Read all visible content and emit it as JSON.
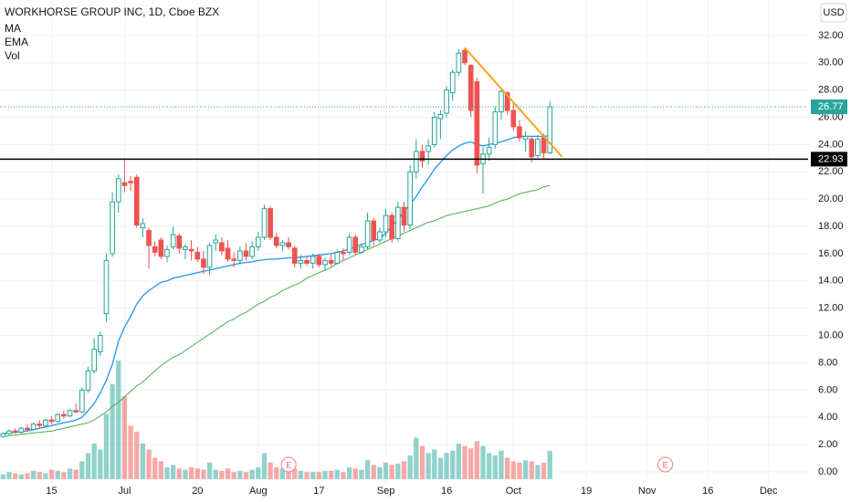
{
  "chart_data": {
    "type": "candlestick",
    "title": "WORKHORSE GROUP INC, 1D, Cboe BZX",
    "currency": "USD",
    "up_color": "#26a69a",
    "down_color": "#ef5350",
    "grid": true,
    "ylim": [
      -0.87,
      34.6
    ],
    "yticks": [
      {
        "value": 0,
        "label": "0.00"
      },
      {
        "value": 2,
        "label": "2.00"
      },
      {
        "value": 4,
        "label": "4.00"
      },
      {
        "value": 6,
        "label": "6.00"
      },
      {
        "value": 8,
        "label": "8.00"
      },
      {
        "value": 10,
        "label": "10.00"
      },
      {
        "value": 12,
        "label": "12.00"
      },
      {
        "value": 14,
        "label": "14.00"
      },
      {
        "value": 16,
        "label": "16.00"
      },
      {
        "value": 18,
        "label": "18.00"
      },
      {
        "value": 20,
        "label": "20.00"
      },
      {
        "value": 22,
        "label": "22.00"
      },
      {
        "value": 24,
        "label": "24.00"
      },
      {
        "value": 26,
        "label": "26.00"
      },
      {
        "value": 28,
        "label": "28.00"
      },
      {
        "value": 30,
        "label": "30.00"
      },
      {
        "value": 32,
        "label": "32.00"
      }
    ],
    "categories": [
      null,
      null,
      null,
      null,
      null,
      null,
      null,
      null,
      "15",
      null,
      null,
      null,
      null,
      null,
      null,
      null,
      null,
      null,
      null,
      null,
      "Jul",
      null,
      null,
      null,
      null,
      null,
      null,
      null,
      null,
      null,
      null,
      null,
      "20",
      null,
      null,
      null,
      null,
      null,
      null,
      null,
      null,
      null,
      "Aug",
      null,
      null,
      null,
      null,
      null,
      null,
      null,
      null,
      null,
      "17",
      null,
      null,
      null,
      null,
      null,
      null,
      null,
      null,
      null,
      null,
      "Sep",
      null,
      null,
      null,
      null,
      null,
      null,
      null,
      null,
      null,
      "16",
      null,
      null,
      null,
      null,
      null,
      null,
      null,
      null,
      null,
      null,
      "Oct",
      null,
      null,
      null,
      null,
      null,
      null,
      null,
      null,
      null,
      null,
      null,
      "19",
      null,
      null,
      null,
      null,
      null,
      null,
      null,
      null,
      null,
      "Nov",
      null,
      null,
      null,
      null,
      null,
      null,
      null,
      null,
      null,
      "16",
      null,
      null,
      null,
      null,
      null,
      null,
      null,
      null,
      null,
      "Dec",
      null,
      null,
      null,
      null,
      null,
      null
    ],
    "open": [
      2.6,
      2.8,
      3.0,
      2.9,
      3.2,
      3.1,
      3.5,
      3.4,
      3.8,
      3.7,
      4.2,
      4.1,
      4.5,
      4.4,
      6.0,
      7.4,
      8.8,
      11.6,
      16.0,
      19.8,
      21.2,
      21.3,
      21.6,
      17.9,
      17.7,
      16.5,
      17.0,
      15.8,
      16.5,
      17.3,
      16.3,
      16.3,
      16.1,
      15.6,
      15.0,
      16.8,
      16.8,
      16.4,
      15.6,
      15.5,
      16.2,
      15.8,
      16.5,
      17.2,
      19.3,
      17.2,
      16.6,
      16.8,
      16.4,
      15.3,
      15.5,
      15.3,
      15.8,
      15.2,
      15.5,
      15.3,
      16.1,
      16.1,
      17.2,
      16.1,
      16.5,
      18.4,
      17.0,
      17.6,
      18.8,
      17.1,
      19.4,
      18.1,
      22.0,
      23.5,
      23.5,
      24.0,
      25.9,
      26.3,
      27.8,
      29.3,
      30.9,
      29.8,
      28.6,
      22.6,
      23.3,
      24.0,
      26.4,
      27.8,
      26.5,
      25.3,
      24.4,
      24.4,
      23.2,
      24.5,
      23.4,
      null,
      null,
      null,
      null,
      null,
      null,
      null,
      null,
      null,
      null,
      null,
      null,
      null,
      null,
      null,
      null,
      null,
      null,
      null,
      null,
      null,
      null,
      null,
      null,
      null,
      null,
      null,
      null,
      null,
      null,
      null,
      null,
      null,
      null,
      null,
      null,
      null,
      null,
      null,
      null,
      null,
      null
    ],
    "high": [
      2.9,
      3.1,
      3.2,
      3.3,
      3.5,
      3.6,
      3.8,
      3.9,
      4.1,
      4.3,
      4.5,
      4.6,
      5.0,
      6.2,
      7.7,
      9.8,
      10.3,
      16.0,
      20.5,
      21.8,
      23.0,
      21.7,
      21.8,
      18.6,
      17.9,
      16.9,
      17.2,
      16.6,
      18.0,
      17.5,
      16.7,
      17.0,
      16.5,
      16.2,
      16.8,
      17.4,
      17.2,
      17.0,
      16.1,
      16.5,
      16.8,
      16.9,
      17.6,
      19.6,
      19.5,
      17.5,
      17.0,
      17.2,
      16.6,
      15.9,
      15.8,
      16.0,
      16.0,
      15.7,
      16.0,
      16.3,
      16.4,
      17.5,
      17.4,
      16.7,
      19.0,
      18.6,
      17.9,
      19.3,
      19.0,
      19.8,
      19.8,
      22.5,
      24.4,
      24.0,
      24.4,
      26.4,
      26.5,
      28.3,
      29.5,
      31.0,
      31.1,
      29.9,
      28.9,
      23.8,
      24.5,
      26.8,
      28.2,
      27.9,
      27.0,
      25.8,
      25.0,
      24.6,
      24.7,
      24.8,
      27.2,
      null,
      null,
      null,
      null,
      null,
      null,
      null,
      null,
      null,
      null,
      null,
      null,
      null,
      null,
      null,
      null,
      null,
      null,
      null,
      null,
      null,
      null,
      null,
      null,
      null,
      null,
      null,
      null,
      null,
      null,
      null,
      null,
      null,
      null,
      null,
      null,
      null,
      null,
      null,
      null,
      null,
      null
    ],
    "low": [
      2.5,
      2.7,
      2.8,
      2.8,
      3.0,
      3.0,
      3.2,
      3.3,
      3.5,
      3.6,
      3.9,
      4.0,
      4.3,
      4.3,
      5.8,
      7.2,
      8.5,
      11.0,
      15.8,
      19.0,
      20.5,
      20.6,
      17.9,
      17.2,
      14.9,
      15.8,
      15.6,
      15.4,
      16.3,
      16.0,
      15.6,
      15.5,
      15.4,
      14.5,
      14.4,
      16.2,
      15.9,
      15.4,
      15.0,
      15.2,
      15.5,
      15.6,
      16.2,
      17.0,
      17.0,
      16.4,
      16.2,
      16.3,
      15.0,
      14.9,
      15.1,
      14.9,
      15.0,
      14.8,
      15.1,
      15.2,
      15.5,
      15.9,
      15.9,
      16.0,
      16.3,
      16.6,
      16.8,
      17.2,
      16.8,
      16.9,
      17.6,
      17.8,
      21.5,
      22.3,
      22.5,
      23.8,
      24.4,
      26.0,
      27.2,
      29.0,
      29.8,
      26.0,
      21.9,
      20.4,
      22.8,
      23.7,
      25.8,
      26.2,
      25.0,
      24.2,
      23.5,
      22.7,
      23.0,
      23.0,
      23.3,
      null,
      null,
      null,
      null,
      null,
      null,
      null,
      null,
      null,
      null,
      null,
      null,
      null,
      null,
      null,
      null,
      null,
      null,
      null,
      null,
      null,
      null,
      null,
      null,
      null,
      null,
      null,
      null,
      null,
      null,
      null,
      null,
      null,
      null,
      null,
      null,
      null,
      null,
      null,
      null,
      null,
      null
    ],
    "close": [
      2.8,
      3.0,
      2.9,
      3.2,
      3.1,
      3.5,
      3.4,
      3.8,
      3.7,
      4.2,
      4.1,
      4.5,
      4.4,
      6.0,
      7.4,
      9.0,
      10.0,
      15.5,
      19.8,
      21.5,
      21.0,
      21.2,
      18.1,
      18.2,
      16.6,
      16.1,
      15.8,
      16.3,
      17.4,
      16.4,
      16.5,
      16.2,
      15.6,
      15.0,
      16.6,
      17.0,
      16.2,
      15.6,
      15.5,
      16.2,
      15.8,
      16.5,
      17.2,
      19.3,
      17.2,
      16.6,
      16.8,
      16.5,
      15.3,
      15.5,
      15.3,
      15.8,
      15.2,
      15.5,
      15.3,
      16.1,
      16.0,
      17.2,
      16.1,
      16.5,
      18.4,
      17.0,
      17.6,
      18.8,
      17.1,
      19.4,
      18.1,
      22.0,
      23.5,
      22.8,
      23.9,
      26.0,
      26.2,
      28.0,
      29.3,
      30.7,
      30.0,
      26.5,
      22.5,
      23.3,
      23.8,
      26.4,
      27.9,
      26.5,
      25.3,
      24.5,
      24.6,
      23.1,
      24.4,
      23.4,
      26.77,
      null,
      null,
      null,
      null,
      null,
      null,
      null,
      null,
      null,
      null,
      null,
      null,
      null,
      null,
      null,
      null,
      null,
      null,
      null,
      null,
      null,
      null,
      null,
      null,
      null,
      null,
      null,
      null,
      null,
      null,
      null,
      null,
      null,
      null,
      null,
      null,
      null,
      null,
      null,
      null,
      null,
      null
    ],
    "volume": {
      "name": "Vol",
      "values": [
        4,
        6,
        5,
        4,
        5,
        7,
        6,
        5,
        8,
        7,
        6,
        9,
        8,
        15,
        22,
        30,
        25,
        55,
        80,
        100,
        70,
        45,
        40,
        30,
        25,
        18,
        15,
        10,
        12,
        9,
        8,
        10,
        9,
        8,
        14,
        8,
        7,
        9,
        6,
        7,
        6,
        8,
        10,
        22,
        14,
        10,
        9,
        8,
        9,
        7,
        6,
        6,
        6,
        7,
        7,
        8,
        6,
        10,
        9,
        8,
        16,
        12,
        10,
        14,
        12,
        13,
        15,
        20,
        35,
        28,
        22,
        25,
        18,
        22,
        24,
        30,
        28,
        26,
        32,
        28,
        22,
        20,
        24,
        18,
        15,
        14,
        16,
        15,
        12,
        14,
        24,
        null,
        null,
        null,
        null,
        null,
        null,
        null,
        null,
        null,
        null,
        null,
        null,
        null,
        null,
        null,
        null,
        null,
        null,
        null,
        null,
        null,
        null,
        null,
        null,
        null,
        null,
        null,
        null,
        null,
        null,
        null,
        null,
        null,
        null,
        null,
        null,
        null,
        null,
        null,
        null,
        null,
        null
      ]
    },
    "series": [
      {
        "name": "MA",
        "color": "#2196f3",
        "values": [
          2.8,
          2.85,
          2.9,
          2.95,
          3.0,
          3.1,
          3.2,
          3.3,
          3.4,
          3.5,
          3.6,
          3.7,
          3.8,
          4.0,
          4.5,
          5.0,
          5.8,
          6.7,
          7.9,
          9.6,
          10.6,
          11.4,
          12.3,
          12.9,
          13.3,
          13.6,
          13.9,
          14.0,
          14.2,
          14.3,
          14.4,
          14.5,
          14.6,
          14.7,
          14.8,
          14.9,
          15.0,
          15.1,
          15.2,
          15.3,
          15.35,
          15.4,
          15.5,
          15.55,
          15.6,
          15.6,
          15.65,
          15.7,
          15.7,
          15.75,
          15.8,
          15.85,
          15.9,
          15.95,
          16.0,
          16.1,
          16.2,
          16.35,
          16.5,
          16.7,
          16.8,
          17.0,
          17.1,
          17.5,
          18.0,
          18.5,
          19.1,
          19.6,
          20.2,
          20.9,
          21.5,
          22.2,
          22.7,
          23.2,
          23.6,
          23.9,
          24.1,
          24.2,
          24.0,
          23.9,
          24.0,
          24.1,
          24.2,
          24.35,
          24.5,
          24.6,
          24.6,
          24.6,
          24.6,
          24.6,
          24.65,
          null,
          null,
          null,
          null,
          null,
          null,
          null,
          null,
          null,
          null,
          null,
          null,
          null,
          null,
          null,
          null,
          null,
          null,
          null,
          null,
          null,
          null,
          null,
          null,
          null,
          null,
          null,
          null,
          null,
          null,
          null,
          null,
          null,
          null,
          null,
          null,
          null,
          null,
          null,
          null,
          null,
          null
        ]
      },
      {
        "name": "EMA",
        "color": "#4caf50",
        "values": [
          2.6,
          2.65,
          2.7,
          2.75,
          2.8,
          2.85,
          2.9,
          2.95,
          3.0,
          3.1,
          3.2,
          3.3,
          3.4,
          3.5,
          3.6,
          3.8,
          4.1,
          4.4,
          4.8,
          5.1,
          5.5,
          5.9,
          6.3,
          6.6,
          7.0,
          7.4,
          7.8,
          8.1,
          8.4,
          8.6,
          8.9,
          9.2,
          9.5,
          9.8,
          10.1,
          10.4,
          10.7,
          11.0,
          11.2,
          11.5,
          11.7,
          12.0,
          12.3,
          12.5,
          12.8,
          13.0,
          13.3,
          13.5,
          13.7,
          13.9,
          14.2,
          14.4,
          14.6,
          14.8,
          15.0,
          15.3,
          15.5,
          15.7,
          15.9,
          16.1,
          16.3,
          16.5,
          16.7,
          16.9,
          17.1,
          17.3,
          17.5,
          17.7,
          17.9,
          18.1,
          18.3,
          18.4,
          18.6,
          18.8,
          18.9,
          19.0,
          19.1,
          19.2,
          19.3,
          19.4,
          19.5,
          19.7,
          19.9,
          20.0,
          20.2,
          20.4,
          20.5,
          20.6,
          20.7,
          20.9,
          21.0,
          null,
          null,
          null,
          null,
          null,
          null,
          null,
          null,
          null,
          null,
          null,
          null,
          null,
          null,
          null,
          null,
          null,
          null,
          null,
          null,
          null,
          null,
          null,
          null,
          null,
          null,
          null,
          null,
          null,
          null,
          null,
          null,
          null,
          null,
          null,
          null,
          null,
          null,
          null,
          null,
          null,
          null
        ]
      }
    ],
    "last_price": 26.77,
    "hline": {
      "value": 22.93,
      "color": "#000000"
    },
    "trendline": {
      "color": "#f5a623",
      "start": [
        76,
        31.1
      ],
      "end": [
        92,
        23.1
      ]
    },
    "earnings": [
      {
        "label": "E",
        "index": 47
      },
      {
        "label": "E",
        "index": 109
      }
    ]
  }
}
